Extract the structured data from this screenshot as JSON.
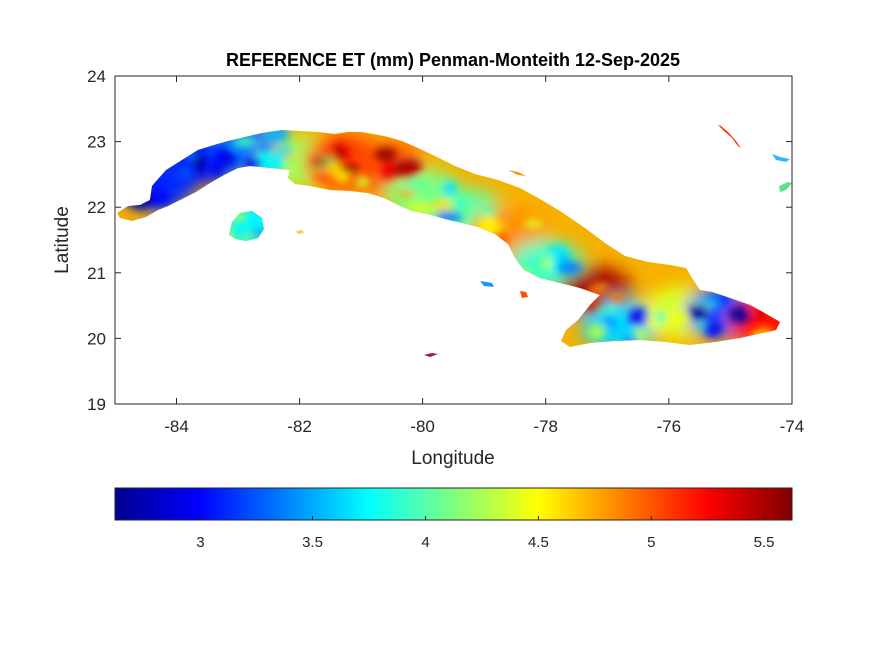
{
  "figure": {
    "title": "REFERENCE ET (mm) Penman-Monteith 12-Sep-2025",
    "xlabel": "Longitude",
    "ylabel": "Latitude",
    "x_ticks": [
      "-84",
      "-82",
      "-80",
      "-78",
      "-76",
      "-74"
    ],
    "y_ticks": [
      "24",
      "23",
      "22",
      "21",
      "20",
      "19"
    ],
    "colorbar_ticks": [
      "3",
      "3.5",
      "4",
      "4.5",
      "5",
      "5.5"
    ]
  },
  "chart_data": {
    "type": "heatmap",
    "title": "REFERENCE ET (mm) Penman-Monteith 12-Sep-2025",
    "xlabel": "Longitude",
    "ylabel": "Latitude",
    "xlim": [
      -85,
      -74
    ],
    "ylim": [
      19,
      24
    ],
    "x_ticks": [
      -84,
      -82,
      -80,
      -78,
      -76,
      -74
    ],
    "y_ticks": [
      19,
      20,
      21,
      22,
      23,
      24
    ],
    "colormap": "jet",
    "clim": [
      2.6,
      5.6
    ],
    "colorbar_ticks": [
      3,
      3.5,
      4,
      4.5,
      5,
      5.5
    ],
    "colorbar_placement": "bottom",
    "grid": false,
    "region": "Cuba",
    "zones": [
      {
        "lon": -84.3,
        "lat": 22.35,
        "value": 3.1
      },
      {
        "lon": -83.5,
        "lat": 22.75,
        "value": 3.0
      },
      {
        "lon": -82.8,
        "lat": 22.9,
        "value": 3.3
      },
      {
        "lon": -82.0,
        "lat": 22.7,
        "value": 4.2
      },
      {
        "lon": -81.3,
        "lat": 22.7,
        "value": 5.1
      },
      {
        "lon": -80.6,
        "lat": 22.6,
        "value": 5.0
      },
      {
        "lon": -80.0,
        "lat": 22.2,
        "value": 4.1
      },
      {
        "lon": -79.3,
        "lat": 21.9,
        "value": 4.0
      },
      {
        "lon": -78.6,
        "lat": 21.6,
        "value": 4.8
      },
      {
        "lon": -78.0,
        "lat": 21.1,
        "value": 3.9
      },
      {
        "lon": -77.2,
        "lat": 20.7,
        "value": 5.5
      },
      {
        "lon": -76.8,
        "lat": 20.2,
        "value": 3.6
      },
      {
        "lon": -75.8,
        "lat": 20.4,
        "value": 4.4
      },
      {
        "lon": -75.1,
        "lat": 20.4,
        "value": 3.2
      },
      {
        "lon": -74.4,
        "lat": 20.25,
        "value": 5.2
      },
      {
        "lon": -82.8,
        "lat": 21.75,
        "value": 3.7
      }
    ]
  }
}
